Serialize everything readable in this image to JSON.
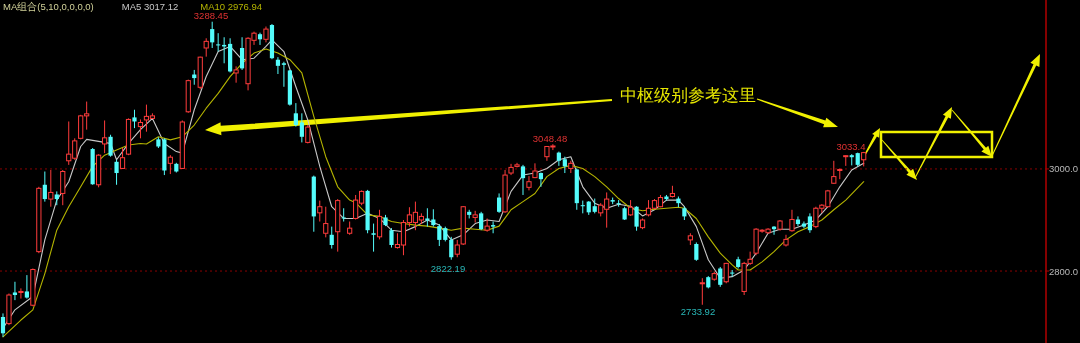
{
  "chart_data": {
    "type": "candlestick",
    "categories": [
      null,
      null,
      null,
      null,
      null,
      null,
      null,
      null,
      null,
      null,
      null,
      null,
      null,
      null,
      null,
      null,
      null,
      null,
      null,
      null,
      null,
      null,
      null,
      null,
      null,
      null,
      null,
      null,
      null,
      null,
      null,
      null,
      null,
      null,
      null,
      null,
      null,
      null,
      null,
      null,
      null,
      null,
      null,
      null,
      null,
      null,
      null,
      null,
      null,
      null,
      null,
      null,
      null,
      null,
      null,
      null,
      null,
      null,
      null,
      null,
      null,
      null,
      null,
      null,
      null,
      null,
      null,
      null,
      null,
      null,
      null,
      null,
      null,
      null,
      null,
      null,
      null,
      null,
      null,
      null,
      null,
      null,
      null,
      null,
      null,
      null,
      null,
      null,
      null,
      null,
      null,
      null,
      null,
      null,
      null,
      null,
      null,
      null,
      null,
      null,
      null,
      null,
      null,
      null,
      null,
      null,
      null,
      null,
      null,
      null,
      null,
      null,
      null,
      null,
      null,
      null,
      null,
      null,
      null,
      null,
      null,
      null,
      null,
      null,
      null,
      null,
      null,
      null,
      null,
      null,
      null,
      null,
      null,
      null,
      null,
      null,
      null,
      null,
      null,
      null,
      null,
      null,
      null,
      null,
      null,
      null,
      null,
      null,
      null,
      null,
      null,
      null,
      null,
      null,
      null,
      null,
      null,
      null,
      null,
      null,
      null,
      null,
      null,
      null,
      null,
      null,
      null,
      null,
      null,
      null,
      null,
      null,
      null,
      null,
      null
    ],
    "ohlc": [
      [
        2710,
        2717,
        2671,
        2678
      ],
      [
        2697,
        2756,
        2694,
        2753
      ],
      [
        2758,
        2779,
        2743,
        2753
      ],
      [
        2758,
        2766,
        2746,
        2760
      ],
      [
        2760,
        2792,
        2746,
        2748
      ],
      [
        2733,
        2805,
        2731,
        2803
      ],
      [
        2838,
        2965,
        2835,
        2962
      ],
      [
        2969,
        2995,
        2936,
        2941
      ],
      [
        2941,
        2998,
        2926,
        2954
      ],
      [
        2950,
        2956,
        2929,
        2941
      ],
      [
        2952,
        2998,
        2929,
        2995
      ],
      [
        3016,
        3093,
        3008,
        3029
      ],
      [
        3021,
        3060,
        3018,
        3055
      ],
      [
        3060,
        3106,
        3058,
        3104
      ],
      [
        3104,
        3132,
        3077,
        3108
      ],
      [
        3039,
        3041,
        2969,
        2970
      ],
      [
        2969,
        3029,
        2964,
        3027
      ],
      [
        3049,
        3095,
        3031,
        3061
      ],
      [
        3063,
        3067,
        3024,
        3026
      ],
      [
        3014,
        3018,
        2969,
        2992
      ],
      [
        3001,
        3041,
        3000,
        3022
      ],
      [
        3029,
        3099,
        3027,
        3097
      ],
      [
        3101,
        3116,
        3080,
        3093
      ],
      [
        3083,
        3097,
        3060,
        3091
      ],
      [
        3096,
        3126,
        3073,
        3103
      ],
      [
        3099,
        3109,
        3099,
        3104
      ],
      [
        3058,
        3062,
        3041,
        3044
      ],
      [
        3058,
        3060,
        2988,
        2997
      ],
      [
        3011,
        3027,
        2990,
        3023
      ],
      [
        3010,
        3012,
        2993,
        2995
      ],
      [
        3001,
        3095,
        3000,
        3092
      ],
      [
        3112,
        3175,
        3110,
        3173
      ],
      [
        3185,
        3194,
        3165,
        3178
      ],
      [
        3160,
        3220,
        3156,
        3219
      ],
      [
        3237,
        3256,
        3220,
        3250
      ],
      [
        3274,
        3288.45,
        3237,
        3248
      ],
      [
        3244,
        3266,
        3230,
        3243
      ],
      [
        3243,
        3258,
        3207,
        3240
      ],
      [
        3245,
        3256,
        3189,
        3191
      ],
      [
        3188,
        3201,
        3169,
        3194
      ],
      [
        3237,
        3258,
        3194,
        3197
      ],
      [
        3167,
        3258,
        3154,
        3256
      ],
      [
        3252,
        3269,
        3243,
        3266
      ],
      [
        3264,
        3267,
        3243,
        3254
      ],
      [
        3254,
        3279,
        3248,
        3274
      ],
      [
        3282,
        3284,
        3215,
        3217
      ],
      [
        3214,
        3219,
        3186,
        3202
      ],
      [
        3207,
        3210,
        3161,
        3204
      ],
      [
        3193,
        3194,
        3124,
        3126
      ],
      [
        3109,
        3129,
        3083,
        3086
      ],
      [
        3091,
        3109,
        3052,
        3063
      ],
      [
        3052,
        3086,
        3050,
        3082
      ],
      [
        2985,
        2987,
        2877,
        2907
      ],
      [
        2914,
        2938,
        2897,
        2926
      ],
      [
        2874,
        2926,
        2866,
        2893
      ],
      [
        2871,
        2887,
        2844,
        2851
      ],
      [
        2877,
        2941,
        2838,
        2938
      ],
      [
        2905,
        2923,
        2897,
        2903
      ],
      [
        2874,
        2897,
        2871,
        2884
      ],
      [
        2903,
        2949,
        2901,
        2939
      ],
      [
        2933,
        2958,
        2929,
        2956
      ],
      [
        2957,
        2959,
        2874,
        2880
      ],
      [
        2874,
        2893,
        2838,
        2871
      ],
      [
        2867,
        2920,
        2862,
        2907
      ],
      [
        2905,
        2910,
        2888,
        2890
      ],
      [
        2880,
        2884,
        2846,
        2851
      ],
      [
        2846,
        2874,
        2844,
        2852
      ],
      [
        2851,
        2900,
        2831,
        2895
      ],
      [
        2895,
        2925,
        2887,
        2910
      ],
      [
        2895,
        2936,
        2880,
        2915
      ],
      [
        2900,
        2913,
        2892,
        2907
      ],
      [
        2903,
        2923,
        2887,
        2899
      ],
      [
        2901,
        2921,
        2887,
        2890
      ],
      [
        2888,
        2892,
        2849,
        2861
      ],
      [
        2884,
        2887,
        2858,
        2861
      ],
      [
        2861,
        2867,
        2822.19,
        2827
      ],
      [
        2833,
        2861,
        2827,
        2851
      ],
      [
        2853,
        2927,
        2851,
        2926
      ],
      [
        2916,
        2920,
        2903,
        2910
      ],
      [
        2905,
        2918,
        2895,
        2910
      ],
      [
        2913,
        2916,
        2880,
        2882
      ],
      [
        2880,
        2903,
        2877,
        2888
      ],
      [
        2890,
        2897,
        2874,
        2887
      ],
      [
        2944,
        2952,
        2914,
        2916
      ],
      [
        2916,
        2998,
        2914,
        2988
      ],
      [
        2992,
        3010,
        2988,
        3003
      ],
      [
        3005,
        3012,
        3003,
        3008
      ],
      [
        3005,
        3008,
        2949,
        2982
      ],
      [
        2964,
        2986,
        2958,
        2975
      ],
      [
        2983,
        3011,
        2982,
        2996
      ],
      [
        2992,
        2993,
        2965,
        2980
      ],
      [
        3024,
        3045,
        3016,
        3044
      ],
      [
        3044,
        3048.48,
        3037,
        3045
      ],
      [
        3032,
        3034,
        3006,
        3016
      ],
      [
        3019,
        3024,
        2992,
        3005
      ],
      [
        3001,
        3016,
        2992,
        3011
      ],
      [
        2999,
        3001,
        2920,
        2933
      ],
      [
        2929,
        2938,
        2913,
        2927
      ],
      [
        2936,
        2937,
        2910,
        2915
      ],
      [
        2927,
        2942,
        2913,
        2916
      ],
      [
        2914,
        2933,
        2907,
        2929
      ],
      [
        2921,
        2954,
        2885,
        2941
      ],
      [
        2939,
        2944,
        2931,
        2936
      ],
      [
        2933,
        2939,
        2926,
        2931
      ],
      [
        2923,
        2926,
        2900,
        2901
      ],
      [
        2910,
        2939,
        2908,
        2925
      ],
      [
        2926,
        2927,
        2879,
        2887
      ],
      [
        2885,
        2903,
        2882,
        2900
      ],
      [
        2910,
        2939,
        2907,
        2923
      ],
      [
        2923,
        2941,
        2921,
        2938
      ],
      [
        2926,
        2949,
        2925,
        2944
      ],
      [
        2946,
        2949,
        2938,
        2941
      ],
      [
        2946,
        2967,
        2944,
        2952
      ],
      [
        2942,
        2946,
        2925,
        2933
      ],
      [
        2923,
        2926,
        2900,
        2907
      ],
      [
        2861,
        2874,
        2851,
        2869
      ],
      [
        2853,
        2856,
        2820,
        2822
      ],
      [
        2776,
        2786,
        2733.92,
        2777
      ],
      [
        2788,
        2790,
        2766,
        2768
      ],
      [
        2784,
        2799,
        2781,
        2795
      ],
      [
        2805,
        2808,
        2769,
        2773
      ],
      [
        2779,
        2816,
        2776,
        2815
      ],
      [
        2797,
        2802,
        2789,
        2795
      ],
      [
        2823,
        2828,
        2805,
        2808
      ],
      [
        2760,
        2818,
        2753,
        2815
      ],
      [
        2815,
        2838,
        2812,
        2823
      ],
      [
        2835,
        2884,
        2831,
        2882
      ],
      [
        2878,
        2882,
        2875,
        2880
      ],
      [
        2875,
        2884,
        2873,
        2882
      ],
      [
        2887,
        2888,
        2871,
        2882
      ],
      [
        2882,
        2900,
        2879,
        2898
      ],
      [
        2851,
        2871,
        2848,
        2862
      ],
      [
        2879,
        2920,
        2877,
        2901
      ],
      [
        2901,
        2907,
        2888,
        2892
      ],
      [
        2893,
        2897,
        2884,
        2887
      ],
      [
        2907,
        2913,
        2875,
        2880
      ],
      [
        2887,
        2926,
        2884,
        2923
      ],
      [
        2923,
        2931,
        2914,
        2929
      ],
      [
        2926,
        2959,
        2925,
        2957
      ],
      [
        2972,
        3016,
        2971,
        2985
      ],
      [
        2997,
        3001,
        2980,
        2999
      ],
      [
        3024,
        3027,
        3006,
        3026
      ],
      [
        3027,
        3029,
        3007,
        3023
      ],
      [
        3031,
        3032,
        3005,
        3008
      ],
      [
        3018,
        3033.4,
        3005,
        3032
      ],
      null,
      null,
      null,
      null,
      null,
      null,
      null,
      null,
      null,
      null,
      null,
      null,
      null,
      null,
      null,
      null,
      null,
      null,
      null,
      null,
      null,
      null,
      null,
      null,
      null,
      null,
      null,
      null,
      null,
      null
    ],
    "series": [
      {
        "name": "MA5 3017.12",
        "type": "line",
        "color": "#c8c8c8",
        "values": [
          2688,
          null,
          2724,
          null,
          null,
          2750,
          null,
          2861,
          null,
          2939,
          null,
          2975,
          null,
          3044,
          3058,
          null,
          3054,
          null,
          3050,
          3018,
          null,
          3050,
          null,
          3077,
          null,
          3099,
          null,
          3050,
          null,
          3034,
          3031,
          null,
          3116,
          null,
          3181,
          null,
          3230,
          null,
          3240,
          null,
          3214,
          null,
          3217,
          null,
          3240,
          3253,
          null,
          3230,
          null,
          3161,
          null,
          3096,
          null,
          3005,
          null,
          2926,
          null,
          2903,
          null,
          2903,
          null,
          2913,
          null,
          2903,
          null,
          2880,
          null,
          2877,
          null,
          2887,
          null,
          2900,
          null,
          2890,
          null,
          2861,
          null,
          2871,
          null,
          2893,
          null,
          2900,
          null,
          2897,
          null,
          2956,
          null,
          2988,
          null,
          2992,
          null,
          3001,
          null,
          3018,
          null,
          3024,
          null,
          2965,
          null,
          2933,
          null,
          2923,
          null,
          2931,
          null,
          2927,
          null,
          2908,
          null,
          2920,
          null,
          2939,
          null,
          2939,
          2926,
          null,
          2887,
          null,
          2822,
          null,
          2786,
          null,
          2789,
          null,
          2802,
          null,
          2835,
          null,
          2874,
          null,
          2882,
          null,
          2882,
          null,
          2890,
          null,
          2900,
          null,
          2926,
          null,
          2965,
          null,
          2998,
          null,
          3011,
          null,
          null,
          null,
          null,
          null,
          null,
          null,
          null,
          null,
          null,
          null,
          null,
          null,
          null,
          null,
          null,
          null,
          null,
          null,
          null,
          null,
          null,
          null,
          null,
          null,
          null,
          null,
          null,
          null,
          null
        ]
      },
      {
        "name": "MA10 2976.94",
        "type": "line",
        "color": "#b4b400",
        "values": [
          2671,
          null,
          null,
          2704,
          null,
          2724,
          null,
          2795,
          null,
          2880,
          null,
          2926,
          null,
          2965,
          null,
          3005,
          null,
          3027,
          null,
          3037,
          null,
          3047,
          null,
          3050,
          3049,
          null,
          3063,
          null,
          3057,
          null,
          3063,
          null,
          3086,
          null,
          3119,
          null,
          3148,
          null,
          3181,
          null,
          3207,
          null,
          3227,
          null,
          3235,
          null,
          3227,
          null,
          3214,
          null,
          3188,
          null,
          3103,
          null,
          3024,
          null,
          2965,
          null,
          2939,
          2934,
          null,
          2910,
          null,
          2907,
          null,
          2897,
          null,
          2893,
          null,
          2890,
          null,
          2888,
          null,
          2884,
          null,
          2880,
          null,
          2884,
          null,
          2882,
          null,
          2880,
          null,
          2888,
          null,
          2920,
          null,
          2936,
          null,
          2952,
          null,
          2985,
          null,
          3001,
          null,
          3007,
          null,
          3001,
          null,
          2985,
          null,
          2965,
          null,
          2942,
          null,
          2923,
          null,
          2918,
          null,
          2921,
          null,
          2923,
          null,
          2925,
          2923,
          null,
          2903,
          null,
          2867,
          null,
          2835,
          null,
          2812,
          2802,
          null,
          2802,
          null,
          2818,
          null,
          2838,
          null,
          2861,
          null,
          2877,
          null,
          2887,
          null,
          2900,
          null,
          2920,
          null,
          2939,
          null,
          null,
          2975,
          null,
          null,
          null,
          null,
          null,
          null,
          null,
          null,
          null,
          null,
          null,
          null,
          null,
          null,
          null,
          null,
          null,
          null,
          null,
          null,
          null,
          null,
          null,
          null,
          null,
          null,
          null,
          null,
          null,
          null
        ]
      }
    ],
    "ylim": [
      2659,
      3331
    ],
    "yticks": [
      {
        "value": 3000,
        "label": "3000.0"
      },
      {
        "value": 2800,
        "label": "2800.0"
      }
    ],
    "tick_labels": "y",
    "grid": "y",
    "legend": "top left",
    "legend_title": "MA组合(5,10,0,0,0,0)",
    "annotations": [
      "3288.45",
      "3048.48",
      "3033.4",
      "2822.19",
      "2733.92",
      "中枢级别参考这里"
    ]
  }
}
